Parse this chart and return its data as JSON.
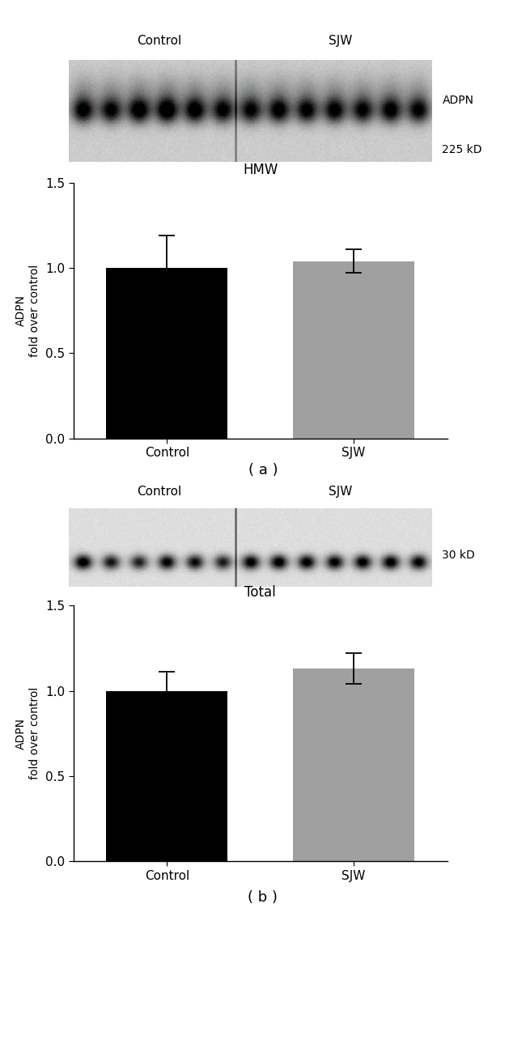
{
  "fig_width": 6.5,
  "fig_height": 12.9,
  "bg_color": "#ffffff",
  "panel_a": {
    "blot_label_control": "Control",
    "blot_label_sjw": "SJW",
    "blot_marker": "ADPN",
    "blot_kd": "225 kD",
    "bar_values": [
      1.0,
      1.04
    ],
    "bar_errors": [
      0.19,
      0.07
    ],
    "bar_colors": [
      "#000000",
      "#a0a0a0"
    ],
    "bar_categories": [
      "Control",
      "SJW"
    ],
    "chart_title": "HMW",
    "ylabel_line1": "ADPN",
    "ylabel_line2": "fold over control",
    "ylim": [
      0,
      1.5
    ],
    "yticks": [
      0.0,
      0.5,
      1.0,
      1.5
    ],
    "panel_label": "( a )"
  },
  "panel_b": {
    "blot_label_control": "Control",
    "blot_label_sjw": "SJW",
    "blot_marker": "30 kD",
    "bar_values": [
      1.0,
      1.13
    ],
    "bar_errors": [
      0.11,
      0.09
    ],
    "bar_colors": [
      "#000000",
      "#a0a0a0"
    ],
    "bar_categories": [
      "Control",
      "SJW"
    ],
    "chart_title": "Total",
    "ylabel_line1": "ADPN",
    "ylabel_line2": "fold over control",
    "ylim": [
      0,
      1.5
    ],
    "yticks": [
      0.0,
      0.5,
      1.0,
      1.5
    ],
    "panel_label": "( b )"
  }
}
